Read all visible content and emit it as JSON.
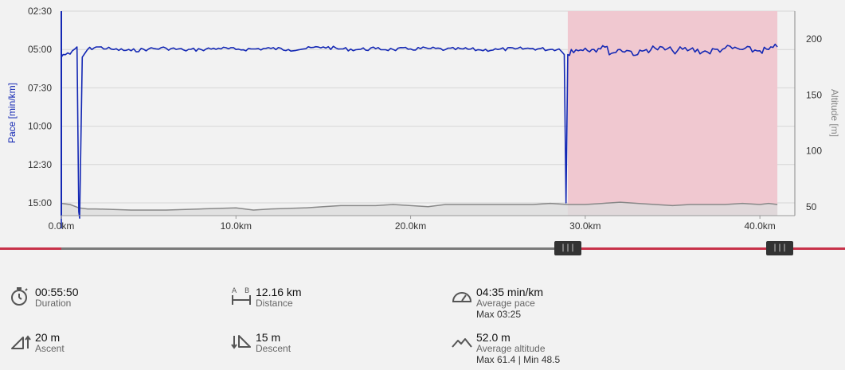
{
  "chart_data": {
    "type": "line",
    "series": [
      {
        "kind": "pace",
        "color": "#1428b4",
        "x_km": [
          0.0,
          0.0,
          0.1,
          0.5,
          0.9,
          1.0,
          1.05,
          1.2,
          1.5,
          2.0,
          3.0,
          4.0,
          5.0,
          6.0,
          7.0,
          8.0,
          9.0,
          10.0,
          11.0,
          12.0,
          13.0,
          14.0,
          15.0,
          16.0,
          17.0,
          18.0,
          19.0,
          20.0,
          21.0,
          22.0,
          23.0,
          24.0,
          25.0,
          26.0,
          27.0,
          28.0,
          28.5,
          28.8,
          28.9,
          29.0,
          29.2,
          29.6,
          30.0,
          30.5,
          31.0,
          31.5,
          32.0,
          32.5,
          33.0,
          33.5,
          34.0,
          35.0,
          36.0,
          37.0,
          38.0,
          39.0,
          40.0,
          40.5,
          41.0
        ],
        "pace_sec": [
          1000,
          330,
          320,
          318,
          290,
          935,
          960,
          330,
          300,
          290,
          300,
          305,
          298,
          295,
          302,
          300,
          295,
          300,
          298,
          296,
          300,
          297,
          290,
          298,
          300,
          297,
          300,
          298,
          296,
          300,
          298,
          302,
          300,
          298,
          296,
          300,
          298,
          320,
          900,
          320,
          300,
          305,
          295,
          300,
          285,
          315,
          300,
          305,
          320,
          300,
          295,
          305,
          300,
          310,
          295,
          300,
          305,
          300,
          290
        ]
      },
      {
        "kind": "altitude",
        "color": "#888888",
        "x_km": [
          0,
          0.5,
          1.0,
          1.5,
          2.0,
          4.0,
          6.0,
          8.0,
          10.0,
          11.0,
          12.0,
          14.0,
          15.0,
          16.0,
          18.0,
          19.0,
          20.0,
          21.0,
          22.0,
          24.0,
          26.0,
          27.0,
          28.0,
          29.0,
          30.0,
          31.0,
          32.0,
          33.0,
          34.0,
          35.0,
          36.0,
          37.0,
          38.0,
          39.0,
          40.0,
          40.5,
          41.0
        ],
        "alt_m": [
          53,
          52,
          49,
          48,
          48,
          47,
          47,
          48,
          49,
          47,
          48,
          49,
          50,
          51,
          51,
          52,
          51,
          50,
          52,
          52,
          52,
          52,
          53,
          52,
          52,
          53,
          54,
          53,
          52,
          51,
          52,
          52,
          52,
          53,
          52,
          53,
          52
        ]
      }
    ],
    "x_range_km": [
      0,
      42
    ],
    "pace_axis_range": [
      "02:30",
      "15:50"
    ],
    "altitude_axis_range": [
      42,
      225
    ],
    "grid": true,
    "highlight_region_km": [
      29.0,
      41.0
    ],
    "highlight_color": "#f0c8d0"
  },
  "axes": {
    "ylabel_left": "Pace [min/km]",
    "ylabel_right": "Altitude [m]",
    "pace_ticks": [
      "02:30",
      "05:00",
      "07:30",
      "10:00",
      "12:30",
      "15:00"
    ],
    "pace_tick_values": [
      150,
      300,
      450,
      600,
      750,
      900
    ],
    "alt_ticks": [
      "200",
      "150",
      "100",
      "50"
    ],
    "alt_tick_values": [
      200,
      150,
      100,
      50
    ],
    "x_ticks": [
      "0.0km",
      "10.0km",
      "20.0km",
      "30.0km",
      "40.0km"
    ],
    "x_tick_values": [
      0,
      10,
      20,
      30,
      40
    ]
  },
  "slider": {
    "range_km": [
      29.0,
      41.0
    ],
    "handle_label": "|||"
  },
  "stats": {
    "duration": {
      "value": "00:55:50",
      "label": "Duration",
      "icon": "stopwatch-icon"
    },
    "distance": {
      "value": "12.16 km",
      "label": "Distance",
      "icon": "distance-ab-icon"
    },
    "pace": {
      "value": "04:35 min/km",
      "label": "Average pace",
      "sub": "Max 03:25",
      "icon": "speedometer-icon"
    },
    "ascent": {
      "value": "20 m",
      "label": "Ascent",
      "icon": "ascent-icon"
    },
    "descent": {
      "value": "15 m",
      "label": "Descent",
      "icon": "descent-icon"
    },
    "altitude": {
      "value": "52.0 m",
      "label": "Average altitude",
      "sub": "Max 61.4  |  Min 48.5",
      "icon": "mountain-icon"
    }
  },
  "colors": {
    "pace_line": "#1428b4",
    "altitude_line": "#808080",
    "altitude_fill": "#dcdcdc",
    "highlight": "#f0c8d0",
    "slider_outside": "#c8324a",
    "slider_inside": "#7a7a7a"
  }
}
